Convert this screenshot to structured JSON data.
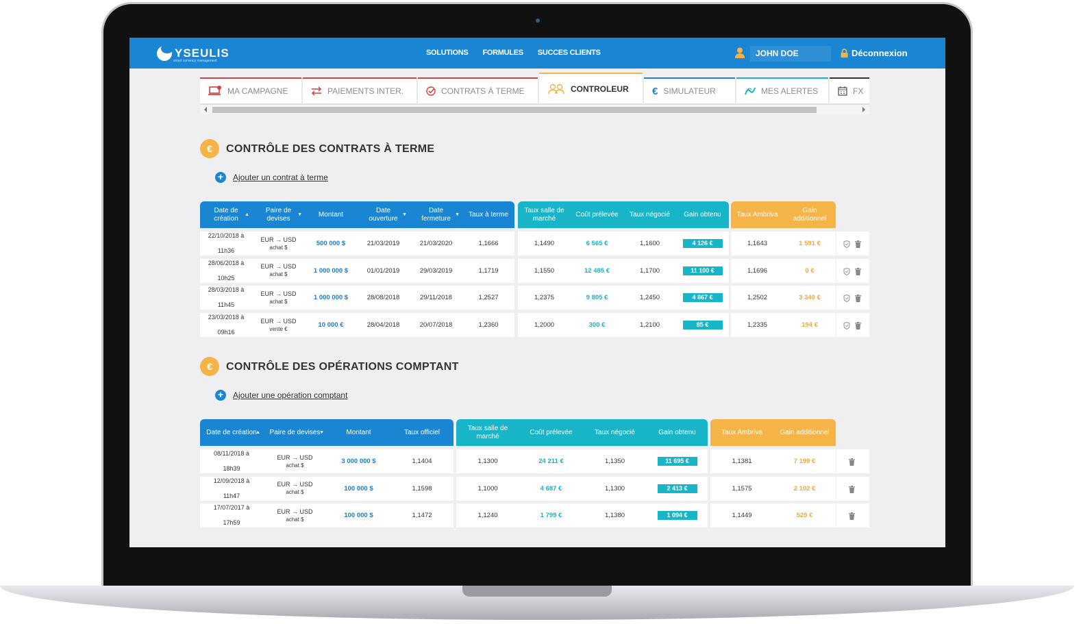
{
  "header": {
    "logo": "YSEULIS",
    "logo_sub": "smart currency management",
    "nav": [
      "SOLUTIONS",
      "FORMULES",
      "SUCCES CLIENTS"
    ],
    "user": "JOHN DOE",
    "logout": "Déconnexion"
  },
  "tabs": [
    {
      "label": "MA CAMPAGNE",
      "icon": "laptop-check-icon"
    },
    {
      "label": "PAIEMENTS INTER.",
      "icon": "transfer-arrows-icon"
    },
    {
      "label": "CONTRATS À TERME",
      "icon": "check-shield-icon"
    },
    {
      "label": "CONTROLEUR",
      "icon": "users-icon",
      "active": true
    },
    {
      "label": "SIMULATEUR",
      "icon": "euro-icon"
    },
    {
      "label": "MES ALERTES",
      "icon": "alert-wave-icon"
    },
    {
      "label": "FX",
      "icon": "calendar-icon"
    }
  ],
  "section1": {
    "icon": "€",
    "title": "CONTRÔLE DES CONTRATS À TERME",
    "add_label": "Ajouter un contrat à terme",
    "headers": {
      "group1": [
        "Date de création",
        "Paire de devises",
        "Montant",
        "Date ouverture",
        "Date fermeture",
        "Taux à terme"
      ],
      "group2": [
        "Taux salle de marché",
        "Coût prélevée",
        "Taux négocié",
        "Gain obtenu"
      ],
      "group3": [
        "Taux Ambriva",
        "Gain additionnel"
      ]
    },
    "rows": [
      {
        "date": "22/10/2018 à",
        "time": "11h36",
        "pair": "EUR → USD",
        "dir": "achat $",
        "amount": "500 000 $",
        "open": "21/03/2019",
        "close": "21/03/2020",
        "rate": "1,1666",
        "market": "1,1490",
        "cost": "6 565 €",
        "negotiated": "1,1600",
        "gain": "4 126 €",
        "ambriva": "1,1643",
        "extra": "1 591 €"
      },
      {
        "date": "28/06/2018 à",
        "time": "10h25",
        "pair": "EUR → USD",
        "dir": "achat $",
        "amount": "1 000 000 $",
        "open": "01/01/2019",
        "close": "29/03/2019",
        "rate": "1,1719",
        "market": "1,1550",
        "cost": "12 485 €",
        "negotiated": "1,1700",
        "gain": "11 100 €",
        "ambriva": "1,1696",
        "extra": "0 €"
      },
      {
        "date": "28/03/2018 à",
        "time": "11h45",
        "pair": "EUR → USD",
        "dir": "achat $",
        "amount": "1 000 000 $",
        "open": "28/08/2018",
        "close": "29/11/2018",
        "rate": "1,2527",
        "market": "1,2375",
        "cost": "9 805 €",
        "negotiated": "1,2450",
        "gain": "4 867 €",
        "ambriva": "1,2502",
        "extra": "3 340 €"
      },
      {
        "date": "23/03/2018 à",
        "time": "09h16",
        "pair": "EUR → USD",
        "dir": "vente €",
        "amount": "10 000 €",
        "open": "28/04/2018",
        "close": "20/07/2018",
        "rate": "1,2360",
        "market": "1,2000",
        "cost": "300 €",
        "negotiated": "1,2100",
        "gain": "85 €",
        "ambriva": "1,2335",
        "extra": "194 €"
      }
    ]
  },
  "section2": {
    "icon": "€",
    "title": "CONTRÔLE DES OPÉRATIONS COMPTANT",
    "add_label": "Ajouter une opération comptant",
    "headers": {
      "group1": [
        "Date de création",
        "Paire de devises",
        "Montant",
        "Taux officiel"
      ],
      "group2": [
        "Taux salle de marché",
        "Coût prélevée",
        "Taux négocié",
        "Gain obtenu"
      ],
      "group3": [
        "Taux Ambriva",
        "Gain additionnel"
      ]
    },
    "rows": [
      {
        "date": "08/11/2018 à",
        "time": "18h39",
        "pair": "EUR → USD",
        "dir": "achat $",
        "amount": "3 000 000 $",
        "official": "1,1404",
        "market": "1,1300",
        "cost": "24 211 €",
        "negotiated": "1,1350",
        "gain": "11 695 €",
        "ambriva": "1,1381",
        "extra": "7 199 €"
      },
      {
        "date": "12/09/2018 à",
        "time": "11h47",
        "pair": "EUR → USD",
        "dir": "achat $",
        "amount": "100 000 $",
        "official": "1,1598",
        "market": "1,1000",
        "cost": "4 687 €",
        "negotiated": "1,1300",
        "gain": "2 413 €",
        "ambriva": "1,1575",
        "extra": "2 102 €"
      },
      {
        "date": "17/07/2017 à",
        "time": "17h59",
        "pair": "EUR → USD",
        "dir": "achat $",
        "amount": "100 000 $",
        "official": "1,1472",
        "market": "1,1240",
        "cost": "1 799 €",
        "negotiated": "1,1380",
        "gain": "1 094 €",
        "ambriva": "1,1449",
        "extra": "529 €"
      }
    ]
  },
  "colors": {
    "brand_blue": "#1a85d2",
    "teal": "#17b5c7",
    "orange": "#f4b447",
    "tab_red": "#d14242"
  }
}
